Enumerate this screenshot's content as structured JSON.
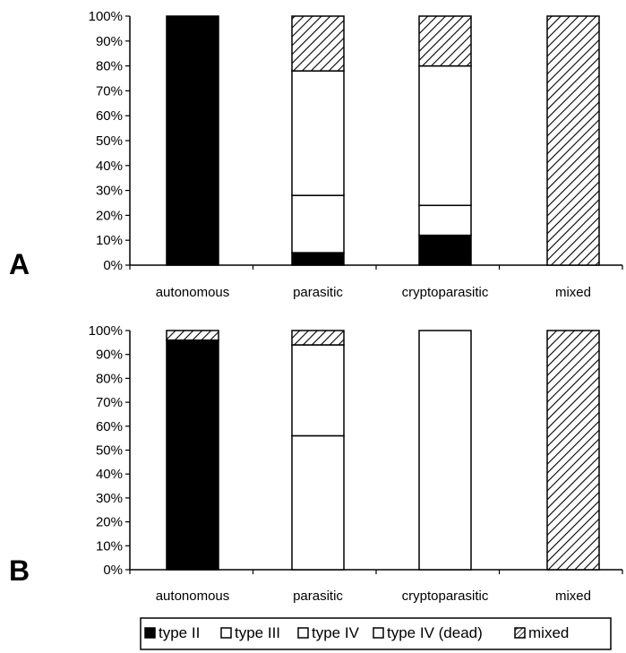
{
  "panels": [
    {
      "label": "A"
    },
    {
      "label": "B"
    }
  ],
  "colors": {
    "type_II": "#000000",
    "type_III": "#ffffff",
    "type_IV": "#ffffff",
    "type_IV_dead": "#ffffff",
    "mixed": "hatched"
  },
  "chart_data": [
    {
      "type": "bar",
      "stacked": true,
      "title": "",
      "xlabel": "",
      "ylabel": "",
      "ylim": [
        0,
        100
      ],
      "y_ticks": [
        "0%",
        "10%",
        "20%",
        "30%",
        "40%",
        "50%",
        "60%",
        "70%",
        "80%",
        "90%",
        "100%"
      ],
      "categories": [
        "autonomous",
        "parasitic",
        "cryptoparasitic",
        "mixed"
      ],
      "series": [
        {
          "name": "type II",
          "values": [
            100,
            5,
            12,
            0
          ]
        },
        {
          "name": "type III",
          "values": [
            0,
            23,
            12,
            0
          ]
        },
        {
          "name": "type IV",
          "values": [
            0,
            50,
            56,
            0
          ]
        },
        {
          "name": "type IV (dead)",
          "values": [
            0,
            0,
            0,
            0
          ]
        },
        {
          "name": "mixed",
          "values": [
            0,
            22,
            20,
            100
          ]
        }
      ]
    },
    {
      "type": "bar",
      "stacked": true,
      "title": "",
      "xlabel": "",
      "ylabel": "",
      "ylim": [
        0,
        100
      ],
      "y_ticks": [
        "0%",
        "10%",
        "20%",
        "30%",
        "40%",
        "50%",
        "60%",
        "70%",
        "80%",
        "90%",
        "100%"
      ],
      "categories": [
        "autonomous",
        "parasitic",
        "cryptoparasitic",
        "mixed"
      ],
      "series": [
        {
          "name": "type II",
          "values": [
            96,
            0,
            0,
            0
          ]
        },
        {
          "name": "type III",
          "values": [
            0,
            56,
            0,
            0
          ]
        },
        {
          "name": "type IV",
          "values": [
            0,
            38,
            100,
            0
          ]
        },
        {
          "name": "type IV (dead)",
          "values": [
            0,
            0,
            0,
            0
          ]
        },
        {
          "name": "mixed",
          "values": [
            4,
            6,
            0,
            100
          ]
        }
      ]
    }
  ],
  "legend": {
    "placement": "bottom",
    "items": [
      "type II",
      "type III",
      "type IV",
      "type IV (dead)",
      "mixed"
    ]
  }
}
